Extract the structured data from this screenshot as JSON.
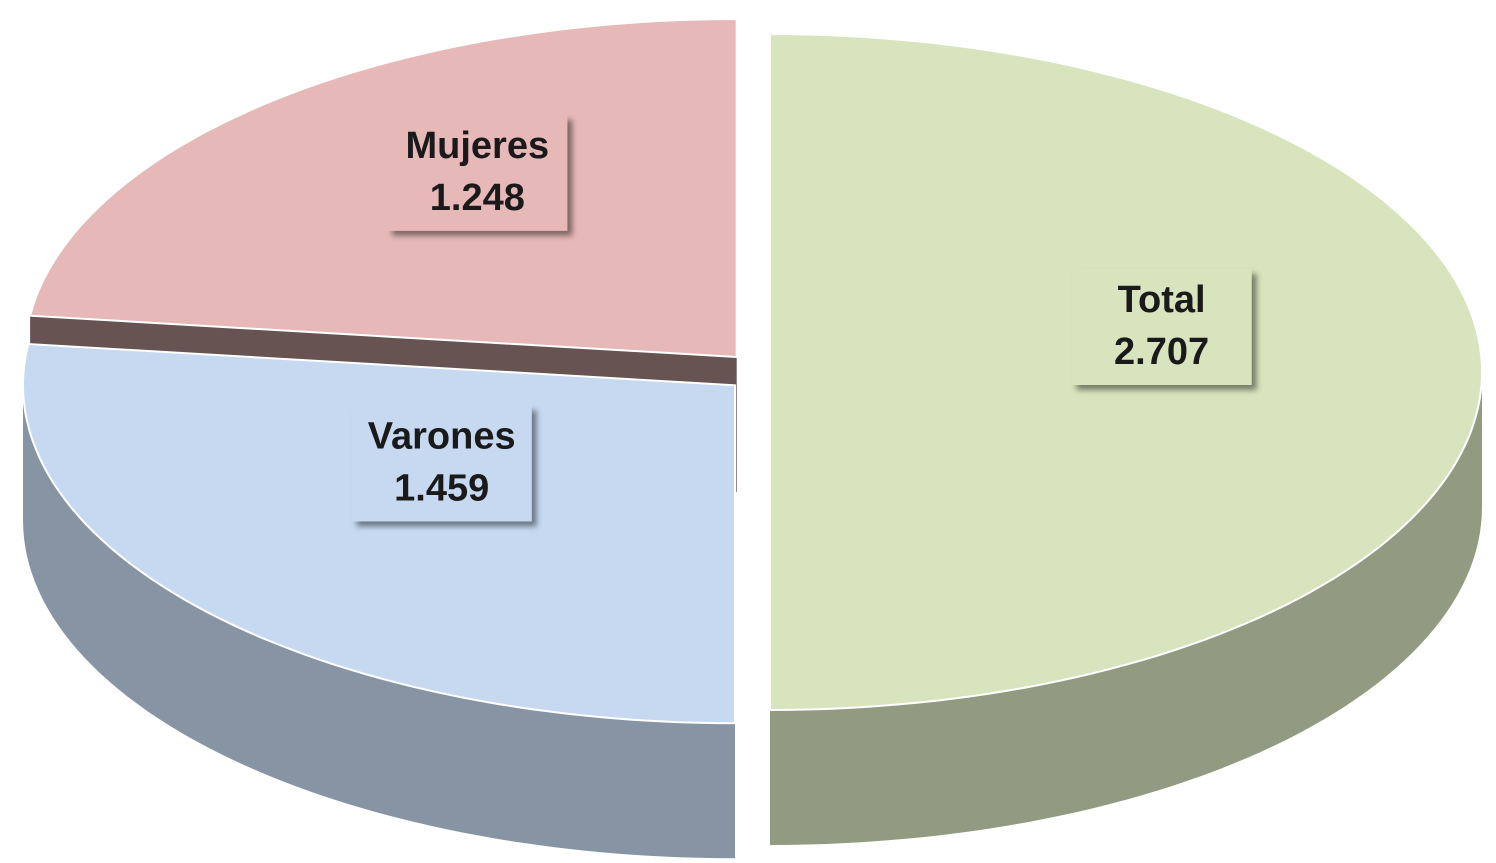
{
  "chart_data": {
    "type": "pie",
    "categories": [
      "Total",
      "Varones",
      "Mujeres"
    ],
    "values": [
      2707,
      1459,
      1248
    ],
    "value_labels": [
      "2.707",
      "1.459",
      "1.248"
    ],
    "colors": [
      "#d7e4bd",
      "#c6d9f1",
      "#e6b9b8"
    ]
  }
}
